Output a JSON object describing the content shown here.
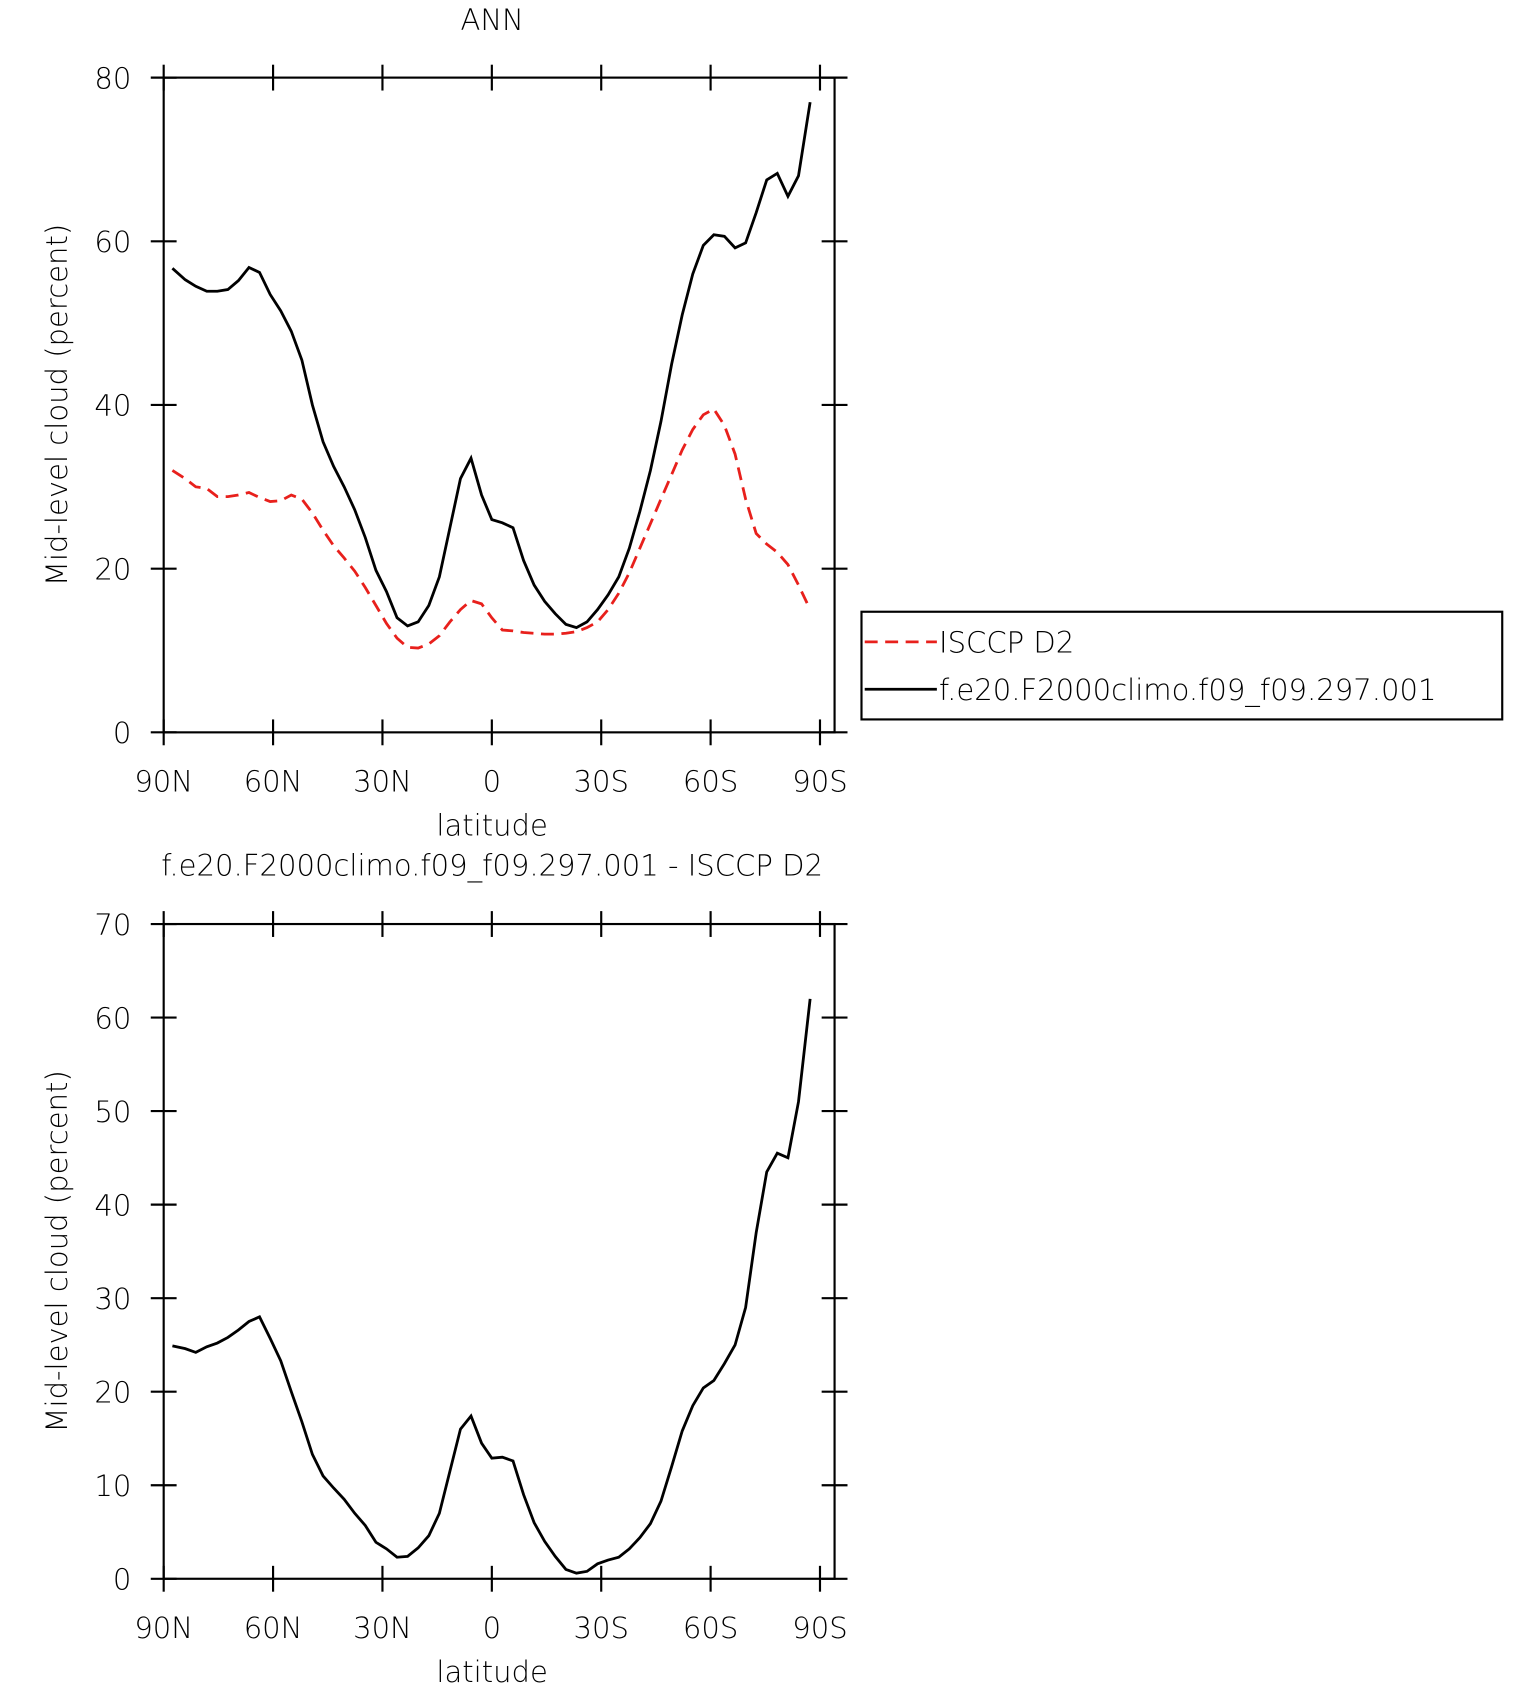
{
  "chart_data": [
    {
      "type": "line",
      "title": "ANN",
      "xlabel": "latitude",
      "ylabel": "Mid-level cloud (percent)",
      "xlim": [
        90,
        -94
      ],
      "ylim": [
        0,
        80
      ],
      "xticks": [
        {
          "value": 90,
          "label": "90N"
        },
        {
          "value": 60,
          "label": "60N"
        },
        {
          "value": 30,
          "label": "30N"
        },
        0,
        {
          "value": -30,
          "label": "30S"
        },
        {
          "value": -60,
          "label": "60S"
        },
        {
          "value": -90,
          "label": "90S"
        }
      ],
      "yticks": [
        0,
        20,
        40,
        60,
        80
      ],
      "legend": "outside-right",
      "x": [
        87.6,
        84.1,
        81.2,
        78.2,
        75.3,
        72.4,
        69.5,
        66.6,
        63.7,
        60.8,
        57.9,
        55,
        52.1,
        49.2,
        46.3,
        43.4,
        40.5,
        37.6,
        34.7,
        31.8,
        28.9,
        26,
        23.1,
        20.2,
        17.3,
        14.4,
        11.5,
        8.6,
        5.7,
        2.8,
        0,
        -2.9,
        -5.8,
        -8.7,
        -11.6,
        -14.5,
        -17.4,
        -20.3,
        -23.2,
        -26.1,
        -29,
        -31.9,
        -34.8,
        -37.7,
        -40.6,
        -43.5,
        -46.4,
        -49.3,
        -52.2,
        -55.1,
        -58,
        -60.9,
        -63.8,
        -66.7,
        -69.6,
        -72.5,
        -75.4,
        -78.3,
        -81.2,
        -84.1,
        -87.3
      ],
      "series": [
        {
          "name": "ISCCP D2",
          "color": "#e8201c",
          "dash": true,
          "values": [
            32,
            31,
            30,
            29.8,
            28.8,
            28.8,
            29,
            29.3,
            28.7,
            28.2,
            28.3,
            29,
            28.5,
            26.8,
            24.7,
            22.8,
            21.3,
            19.7,
            17.7,
            15.5,
            13.3,
            11.5,
            10.4,
            10.3,
            10.8,
            11.8,
            13.5,
            15,
            16.1,
            15.7,
            14,
            12.5,
            12.4,
            12.2,
            12.1,
            12,
            12,
            12.1,
            12.3,
            12.8,
            13.5,
            15,
            17,
            19.5,
            22.5,
            25.5,
            28.5,
            31.5,
            34.5,
            37,
            38.8,
            39.5,
            37.5,
            34,
            28.5,
            24.3,
            23,
            22,
            20.5,
            18,
            15
          ]
        },
        {
          "name": "f.e20.F2000climo.f09_f09.297.001",
          "color": "#000000",
          "dash": false,
          "values": [
            56.7,
            55.3,
            54.5,
            53.9,
            53.9,
            54.1,
            55.2,
            56.8,
            56.2,
            53.5,
            51.5,
            49,
            45.5,
            40,
            35.5,
            32.5,
            30,
            27.2,
            23.8,
            19.8,
            17.2,
            14,
            13,
            13.5,
            15.5,
            19,
            25,
            31,
            33.5,
            29,
            26,
            25.6,
            25,
            21,
            18,
            16,
            14.5,
            13.2,
            12.8,
            13.5,
            15,
            16.8,
            19,
            22.5,
            27,
            32,
            38,
            45,
            51,
            56,
            59.5,
            60.8,
            60.6,
            59.2,
            59.8,
            63.5,
            67.5,
            68.3,
            65.5,
            68,
            77
          ]
        }
      ]
    },
    {
      "type": "line",
      "title": "f.e20.F2000climo.f09_f09.297.001 - ISCCP D2",
      "xlabel": "latitude",
      "ylabel": "Mid-level cloud (percent)",
      "xlim": [
        90,
        -94
      ],
      "ylim": [
        0,
        70
      ],
      "xticks": [
        {
          "value": 90,
          "label": "90N"
        },
        {
          "value": 60,
          "label": "60N"
        },
        {
          "value": 30,
          "label": "30N"
        },
        0,
        {
          "value": -30,
          "label": "30S"
        },
        {
          "value": -60,
          "label": "60S"
        },
        {
          "value": -90,
          "label": "90S"
        }
      ],
      "yticks": [
        0,
        10,
        20,
        30,
        40,
        50,
        60,
        70
      ],
      "x": [
        87.6,
        84.1,
        81.2,
        78.2,
        75.3,
        72.4,
        69.5,
        66.6,
        63.7,
        60.8,
        57.9,
        55,
        52.1,
        49.2,
        46.3,
        43.4,
        40.5,
        37.6,
        34.7,
        31.8,
        28.9,
        26,
        23.1,
        20.2,
        17.3,
        14.4,
        11.5,
        8.6,
        5.7,
        2.8,
        0,
        -2.9,
        -5.8,
        -8.7,
        -11.6,
        -14.5,
        -17.4,
        -20.3,
        -23.2,
        -26.1,
        -29,
        -31.9,
        -34.8,
        -37.7,
        -40.6,
        -43.5,
        -46.4,
        -49.3,
        -52.2,
        -55.1,
        -58,
        -60.9,
        -63.8,
        -66.7,
        -69.6,
        -72.5,
        -75.4,
        -78.3,
        -81.2,
        -84.1,
        -87.3
      ],
      "series": [
        {
          "color": "#000000",
          "dash": false,
          "values": [
            24.9,
            24.6,
            24.2,
            24.8,
            25.2,
            25.8,
            26.6,
            27.5,
            28,
            25.7,
            23.3,
            20,
            16.8,
            13.3,
            11,
            9.7,
            8.5,
            7,
            5.7,
            3.9,
            3.2,
            2.3,
            2.4,
            3.3,
            4.6,
            7,
            11.5,
            16,
            17.4,
            14.5,
            12.9,
            13,
            12.6,
            9,
            6,
            4,
            2.4,
            1,
            0.6,
            0.8,
            1.6,
            2,
            2.3,
            3.2,
            4.4,
            5.9,
            8.3,
            12,
            15.8,
            18.5,
            20.4,
            21.2,
            23,
            25,
            29,
            37,
            43.5,
            45.5,
            45,
            51,
            62
          ]
        }
      ]
    }
  ]
}
